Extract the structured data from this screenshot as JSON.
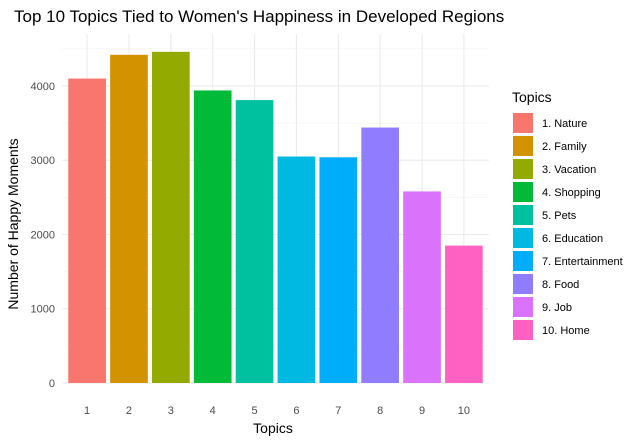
{
  "chart_data": {
    "type": "bar",
    "title": "Top 10 Topics Tied to Women's Happiness in Developed Regions",
    "xlabel": "Topics",
    "ylabel": "Number of Happy Moments",
    "categories": [
      "1",
      "2",
      "3",
      "4",
      "5",
      "6",
      "7",
      "8",
      "9",
      "10"
    ],
    "values": [
      4100,
      4420,
      4460,
      3940,
      3810,
      3050,
      3040,
      3440,
      2580,
      1850
    ],
    "colors": [
      "#F8766D",
      "#D39200",
      "#93AA00",
      "#00BA38",
      "#00C19F",
      "#00B9E3",
      "#00ADFA",
      "#8F7CFF",
      "#DB72FB",
      "#FF61C3"
    ],
    "ylim": [
      0,
      4700
    ],
    "yticks": [
      0,
      1000,
      2000,
      3000,
      4000
    ],
    "grid": true,
    "legend": {
      "title": "Topics",
      "position": "right",
      "entries": [
        "1. Nature",
        "2. Family",
        "3. Vacation",
        "4. Shopping",
        "5. Pets",
        "6. Education",
        "7. Entertainment",
        "8. Food",
        "9. Job",
        "10. Home"
      ]
    }
  }
}
